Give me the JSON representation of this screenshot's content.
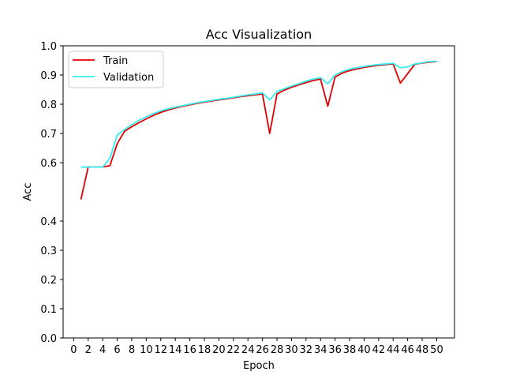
{
  "chart_data": {
    "type": "line",
    "title": "Acc Visualization",
    "xlabel": "Epoch",
    "ylabel": "Acc",
    "xlim": [
      -1.45,
      52.45
    ],
    "ylim": [
      0.0,
      1.0
    ],
    "xticks": [
      0,
      2,
      4,
      6,
      8,
      10,
      12,
      14,
      16,
      18,
      20,
      22,
      24,
      26,
      28,
      30,
      32,
      34,
      36,
      38,
      40,
      42,
      44,
      46,
      48,
      50
    ],
    "yticks": [
      0.0,
      0.1,
      0.2,
      0.3,
      0.4,
      0.6,
      0.7,
      0.8,
      0.9,
      1.0
    ],
    "ytick_labels": [
      "0.0",
      "0.1",
      "0.2",
      "0.3",
      "0.4",
      "0.6",
      "0.7",
      "0.8",
      "0.9",
      "1.0"
    ],
    "grid": false,
    "legend": "upper-left",
    "x": [
      1,
      2,
      3,
      4,
      5,
      6,
      7,
      8,
      9,
      10,
      11,
      12,
      13,
      14,
      15,
      16,
      17,
      18,
      19,
      20,
      21,
      22,
      23,
      24,
      25,
      26,
      27,
      28,
      29,
      30,
      31,
      32,
      33,
      34,
      35,
      36,
      37,
      38,
      39,
      40,
      41,
      42,
      43,
      44,
      45,
      46,
      47,
      48,
      49,
      50
    ],
    "series": [
      {
        "name": "Train",
        "color": "#e00000",
        "values": [
          0.474,
          0.585,
          0.585,
          0.585,
          0.59,
          0.665,
          0.707,
          0.723,
          0.737,
          0.75,
          0.762,
          0.772,
          0.78,
          0.787,
          0.793,
          0.798,
          0.803,
          0.807,
          0.811,
          0.815,
          0.818,
          0.822,
          0.826,
          0.829,
          0.832,
          0.835,
          0.7,
          0.835,
          0.848,
          0.858,
          0.866,
          0.874,
          0.881,
          0.886,
          0.793,
          0.893,
          0.907,
          0.915,
          0.921,
          0.926,
          0.93,
          0.933,
          0.936,
          0.938,
          0.872,
          0.905,
          0.937,
          0.941,
          0.944,
          0.946
        ]
      },
      {
        "name": "Validation",
        "color": "#33eeee",
        "values": [
          0.585,
          0.585,
          0.585,
          0.585,
          0.615,
          0.695,
          0.713,
          0.73,
          0.745,
          0.757,
          0.768,
          0.777,
          0.784,
          0.79,
          0.795,
          0.8,
          0.805,
          0.809,
          0.813,
          0.817,
          0.82,
          0.824,
          0.828,
          0.832,
          0.835,
          0.839,
          0.815,
          0.843,
          0.853,
          0.862,
          0.87,
          0.879,
          0.886,
          0.891,
          0.87,
          0.9,
          0.912,
          0.92,
          0.925,
          0.929,
          0.933,
          0.936,
          0.938,
          0.94,
          0.925,
          0.928,
          0.938,
          0.942,
          0.946,
          0.947
        ]
      }
    ]
  }
}
